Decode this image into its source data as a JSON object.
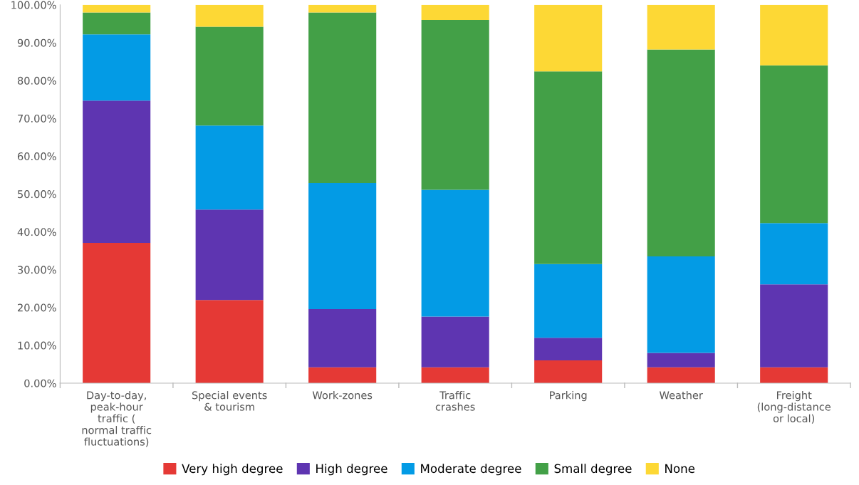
{
  "chart_data": {
    "type": "bar",
    "stacked": true,
    "categories": [
      "Day-to-day,\npeak-hour\ntraffic (\nnormal traffic\nfluctuations)",
      "Special events\n& tourism",
      "Work-zones",
      "Traffic\ncrashes",
      "Parking",
      "Weather",
      "Freight\n(long-distance\nor local)"
    ],
    "series": [
      {
        "name": "Very high degree",
        "color": "#e53935",
        "values": [
          37.1,
          22.0,
          4.2,
          4.2,
          6.0,
          4.2,
          4.2
        ]
      },
      {
        "name": "High degree",
        "color": "#5e35b1",
        "values": [
          37.6,
          23.9,
          15.4,
          13.4,
          6.0,
          3.8,
          21.9
        ]
      },
      {
        "name": "Moderate degree",
        "color": "#039be5",
        "values": [
          17.5,
          22.2,
          33.3,
          33.5,
          19.5,
          25.5,
          16.2
        ]
      },
      {
        "name": "Small degree",
        "color": "#43a047",
        "values": [
          5.8,
          26.1,
          45.1,
          44.9,
          50.9,
          54.7,
          41.7
        ]
      },
      {
        "name": "None",
        "color": "#fdd835",
        "values": [
          2.0,
          5.8,
          2.0,
          4.0,
          17.6,
          11.8,
          16.0
        ]
      }
    ],
    "ylim": [
      0,
      100
    ],
    "yticks": [
      {
        "value": 0,
        "label": "0.00%"
      },
      {
        "value": 10,
        "label": "10.00%"
      },
      {
        "value": 20,
        "label": "20.00%"
      },
      {
        "value": 30,
        "label": "30.00%"
      },
      {
        "value": 40,
        "label": "40.00%"
      },
      {
        "value": 50,
        "label": "50.00%"
      },
      {
        "value": 60,
        "label": "60.00%"
      },
      {
        "value": 70,
        "label": "70.00%"
      },
      {
        "value": 80,
        "label": "80.00%"
      },
      {
        "value": 90,
        "label": "90.00%"
      },
      {
        "value": 100,
        "label": "100.00%"
      }
    ],
    "grid": false,
    "legend": "bottom"
  }
}
